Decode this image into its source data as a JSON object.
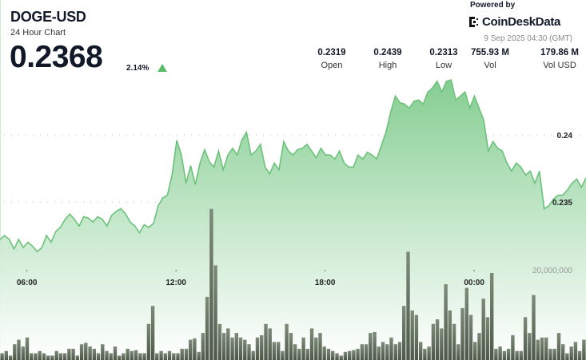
{
  "header": {
    "symbol": "DOGE-USD",
    "subtitle": "24 Hour Chart",
    "price": "0.2368",
    "change": "2.14%",
    "change_direction": "up",
    "powered_by": "Powered by",
    "brand": "CoinDeskData",
    "timestamp": "9 Sep 2025 04:30 (GMT)"
  },
  "stats": [
    {
      "value": "0.2319",
      "label": "Open"
    },
    {
      "value": "0.2439",
      "label": "High"
    },
    {
      "value": "0.2313",
      "label": "Low"
    },
    {
      "value": "755.93 M",
      "label": "Vol"
    },
    {
      "value": "179.86 M",
      "label": "Vol USD"
    }
  ],
  "colors": {
    "line": "#6cc27a",
    "fill_top": "#7fcb8c",
    "volume": "#5d6959",
    "up": "#5bbd6a"
  },
  "chart_data": {
    "type": "area",
    "price_axis": {
      "ticks": [
        {
          "value": 0.24,
          "label": "0.24"
        },
        {
          "value": 0.235,
          "label": "0.235"
        }
      ],
      "range": [
        0.2295,
        0.2455
      ]
    },
    "volume_axis": {
      "ticks": [
        {
          "value": 20000000,
          "label": "20,000,000"
        }
      ]
    },
    "x_axis": {
      "ticks": [
        "06:00",
        "12:00",
        "18:00",
        "00:00"
      ],
      "range": [
        "2025-09-08 04:55",
        "2025-09-09 04:30"
      ]
    },
    "grid": "dotted horizontal",
    "price": [
      0.2322,
      0.2325,
      0.2322,
      0.2315,
      0.2322,
      0.2316,
      0.232,
      0.2317,
      0.2313,
      0.2316,
      0.2325,
      0.232,
      0.2328,
      0.2331,
      0.2337,
      0.2341,
      0.2337,
      0.2332,
      0.2339,
      0.2338,
      0.2335,
      0.2339,
      0.2337,
      0.2332,
      0.234,
      0.2343,
      0.2345,
      0.2341,
      0.2335,
      0.2332,
      0.2327,
      0.2333,
      0.2331,
      0.2334,
      0.2347,
      0.2353,
      0.2355,
      0.237,
      0.2396,
      0.2385,
      0.2364,
      0.2377,
      0.2363,
      0.2379,
      0.2389,
      0.238,
      0.2376,
      0.2388,
      0.2374,
      0.2385,
      0.239,
      0.2385,
      0.2396,
      0.2402,
      0.2385,
      0.2388,
      0.2393,
      0.2376,
      0.2371,
      0.2379,
      0.2374,
      0.2395,
      0.2388,
      0.2385,
      0.2389,
      0.239,
      0.2393,
      0.2388,
      0.2383,
      0.239,
      0.2385,
      0.2385,
      0.2382,
      0.2388,
      0.2379,
      0.2376,
      0.2376,
      0.2385,
      0.2382,
      0.2387,
      0.2385,
      0.2382,
      0.2392,
      0.2402,
      0.2417,
      0.2429,
      0.2424,
      0.2423,
      0.242,
      0.2425,
      0.2426,
      0.2423,
      0.2432,
      0.2435,
      0.244,
      0.2432,
      0.244,
      0.2441,
      0.2426,
      0.2429,
      0.2432,
      0.242,
      0.2429,
      0.242,
      0.2411,
      0.2388,
      0.2395,
      0.239,
      0.2388,
      0.2379,
      0.2373,
      0.2379,
      0.2376,
      0.237,
      0.2373,
      0.2364,
      0.2373,
      0.2345,
      0.2347,
      0.2352,
      0.2355,
      0.2355,
      0.2359,
      0.2364,
      0.2367,
      0.2361,
      0.2368
    ],
    "volume_millions": [
      1.5,
      2,
      1,
      3.5,
      4.5,
      3,
      5,
      1.5,
      1.5,
      2,
      1.5,
      1,
      1,
      2,
      1.5,
      1.5,
      2.5,
      2.5,
      1,
      3.5,
      3.8,
      3,
      2.5,
      1.5,
      3.5,
      2,
      1.5,
      3,
      1,
      1.5,
      2.5,
      2,
      2.2,
      1.5,
      1.5,
      8,
      12,
      1.5,
      2,
      1.5,
      2,
      1.5,
      1.5,
      2.5,
      2.5,
      4.5,
      4.8,
      1.8,
      6,
      14,
      33.5,
      21,
      8,
      6,
      7,
      5,
      6,
      5,
      4.5,
      3.5,
      2,
      5,
      5.5,
      8,
      7,
      4,
      4,
      2,
      8,
      6,
      3.5,
      2.5,
      5,
      2.5,
      7,
      5,
      6,
      3,
      2.5,
      2,
      1.5,
      1,
      1.8,
      2,
      2.2,
      2.5,
      3.5,
      3.5,
      6,
      6.2,
      3,
      4,
      3.5,
      5,
      3.5,
      4,
      12,
      24,
      11,
      10,
      4,
      2.5,
      3,
      8,
      9,
      7,
      16.8,
      11,
      8,
      3.5,
      11.5,
      16,
      10,
      4,
      6,
      13.6,
      9.5,
      19.3,
      2.5,
      3,
      2,
      2.5,
      5.5,
      2,
      2,
      9.5,
      6,
      14.4,
      4.5,
      5,
      5,
      2.5,
      2.5,
      6,
      3.5,
      1.5,
      3,
      4,
      2,
      4.5
    ]
  }
}
